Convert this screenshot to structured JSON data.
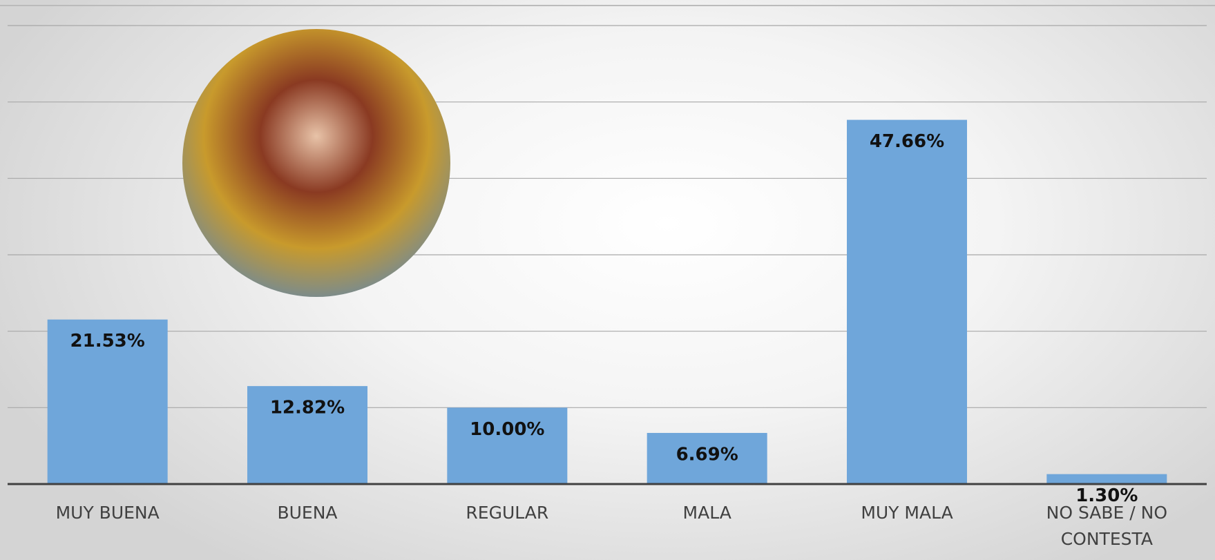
{
  "chart_data": {
    "type": "bar",
    "categories": [
      "MUY BUENA",
      "BUENA",
      "REGULAR",
      "MALA",
      "MUY MALA",
      "NO SABE / NO CONTESTA"
    ],
    "values": [
      21.53,
      12.82,
      10.0,
      6.69,
      47.66,
      1.3
    ],
    "value_labels": [
      "21.53%",
      "12.82%",
      "10.00%",
      "6.69%",
      "47.66%",
      "1.30%"
    ],
    "color": "#6fa6da",
    "ylim": [
      0,
      60
    ],
    "yticks": [
      0,
      10,
      20,
      30,
      40,
      50,
      60
    ],
    "grid": true
  }
}
